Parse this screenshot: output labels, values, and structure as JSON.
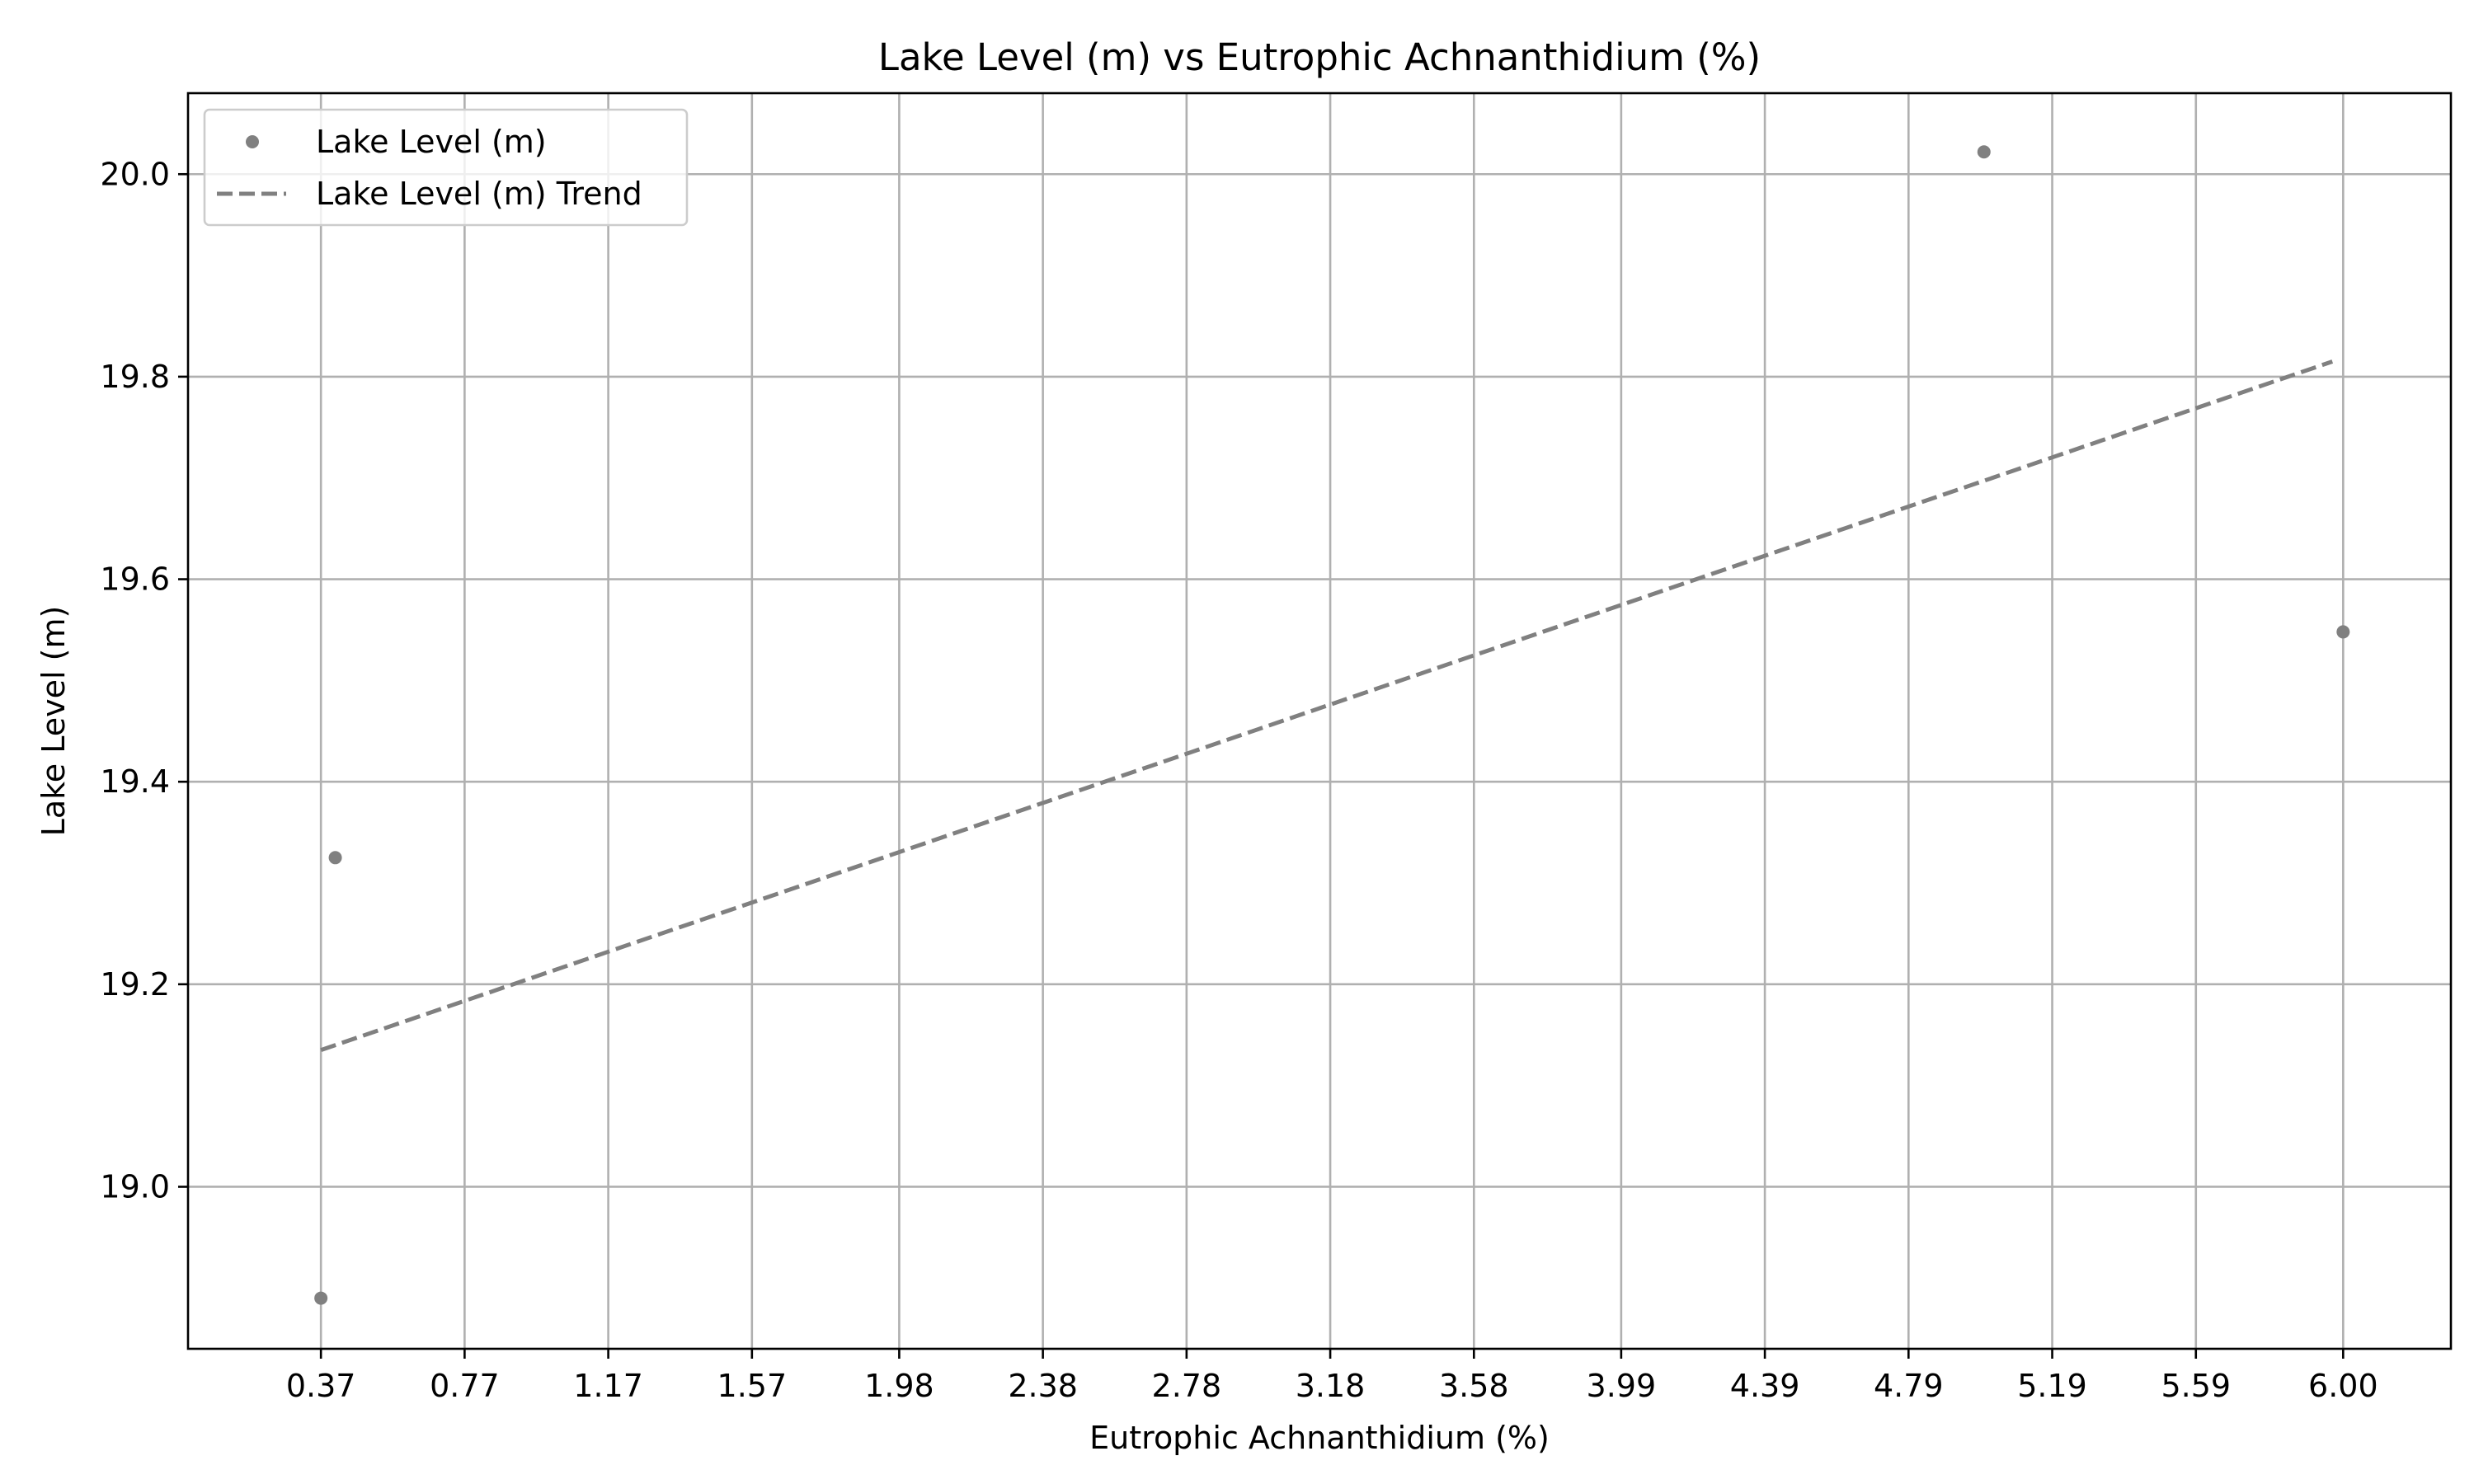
{
  "chart_data": {
    "type": "scatter",
    "title": "Lake Level (m) vs Eutrophic Achnanthidium (%)",
    "xlabel": "Eutrophic Achnanthidium (%)",
    "ylabel": "Lake Level (m)",
    "xlim": [
      0.0,
      6.3
    ],
    "ylim": [
      18.84,
      20.08
    ],
    "x_ticks": [
      0.37,
      0.77,
      1.17,
      1.57,
      1.98,
      2.38,
      2.78,
      3.18,
      3.58,
      3.99,
      4.39,
      4.79,
      5.19,
      5.59,
      6.0
    ],
    "x_tick_labels": [
      "0.37",
      "0.77",
      "1.17",
      "1.57",
      "1.98",
      "2.38",
      "2.78",
      "3.18",
      "3.58",
      "3.99",
      "4.39",
      "4.79",
      "5.19",
      "5.59",
      "6.00"
    ],
    "y_ticks": [
      19.0,
      19.2,
      19.4,
      19.6,
      19.8,
      20.0
    ],
    "y_tick_labels": [
      "19.0",
      "19.2",
      "19.4",
      "19.6",
      "19.8",
      "20.0"
    ],
    "grid": true,
    "legend_position": "top-left",
    "series": [
      {
        "name": "Lake Level (m)",
        "kind": "scatter",
        "color": "#808080",
        "x": [
          0.37,
          0.41,
          5.0,
          6.0
        ],
        "y": [
          18.89,
          19.325,
          20.022,
          19.548
        ]
      },
      {
        "name": "Lake Level (m) Trend",
        "kind": "line",
        "style": "dashed",
        "color": "#808080",
        "x": [
          0.37,
          5.97
        ],
        "y": [
          19.135,
          19.815
        ]
      }
    ]
  }
}
